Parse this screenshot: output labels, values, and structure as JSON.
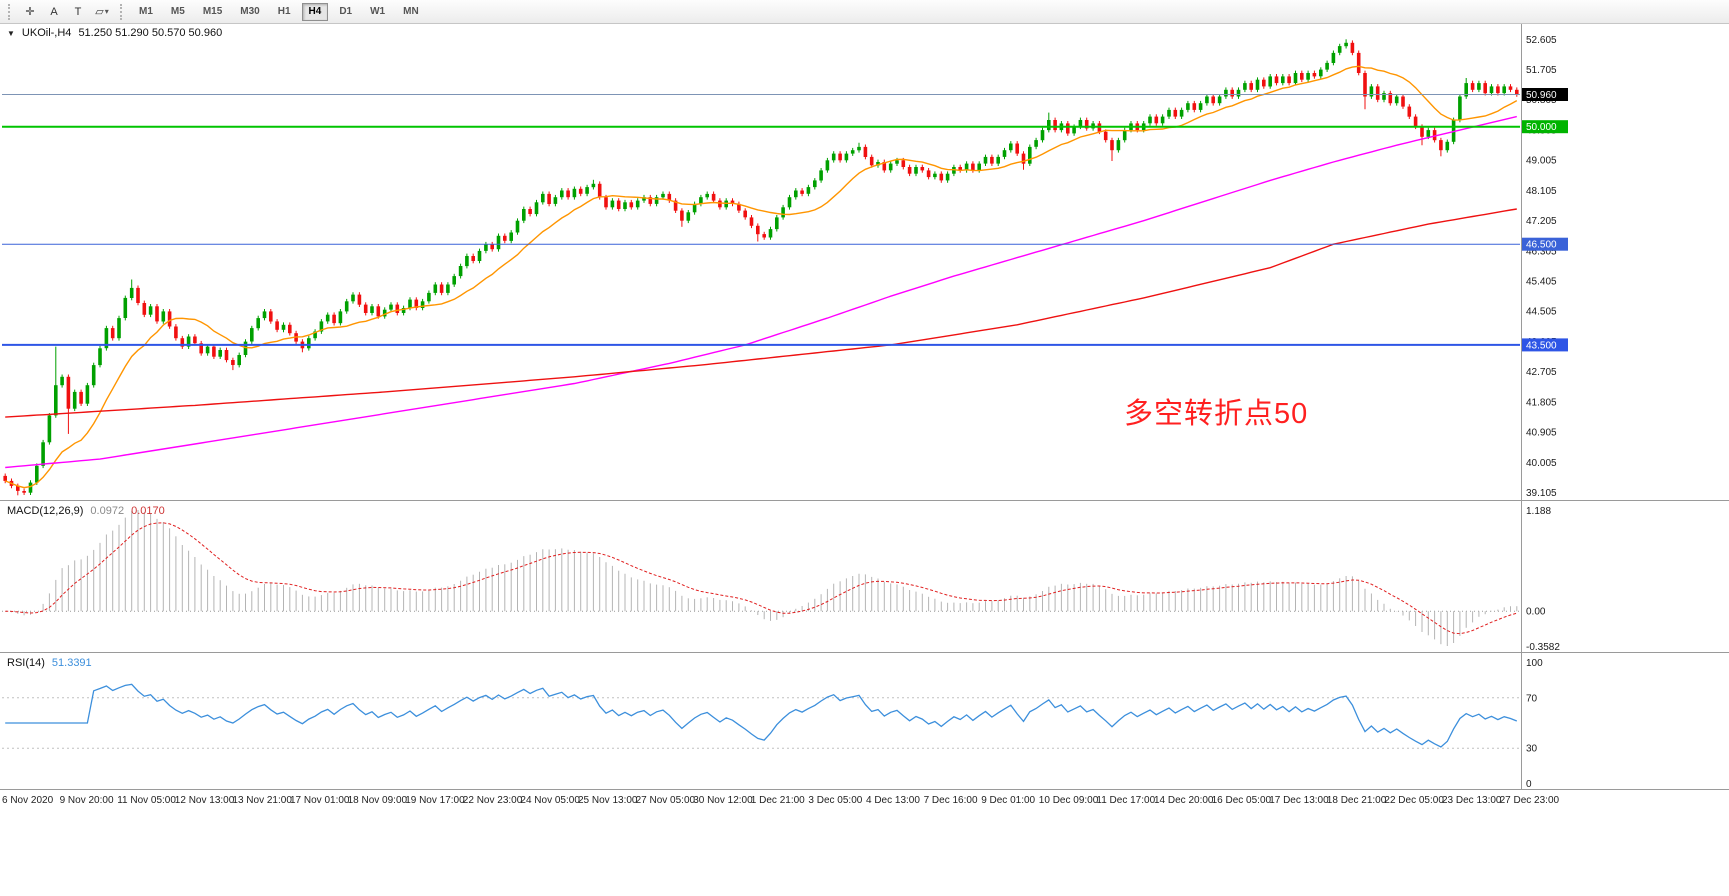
{
  "toolbar": {
    "tools": [
      {
        "name": "crosshair-tool",
        "glyph": "✛"
      },
      {
        "name": "text-tool",
        "glyph": "A"
      },
      {
        "name": "text-label-tool",
        "glyph": "T"
      },
      {
        "name": "shapes-tool",
        "glyph": "▱",
        "caret": "▾"
      }
    ],
    "timeframes": [
      "M1",
      "M5",
      "M15",
      "M30",
      "H1",
      "H4",
      "D1",
      "W1",
      "MN"
    ],
    "active_timeframe": "H4"
  },
  "chart": {
    "dropdown_icon": "▼",
    "title": "UKOil-,H4",
    "ohlc": "51.250 51.290 50.570 50.960",
    "annotation": "多空转折点50",
    "annotation_color": "#ff2020",
    "axis_labels": [
      "52.605",
      "51.705",
      "50.805",
      "49.905",
      "49.005",
      "48.105",
      "47.205",
      "46.305",
      "45.405",
      "44.505",
      "43.605",
      "42.705",
      "41.805",
      "40.905",
      "40.005",
      "39.105"
    ],
    "hlines": [
      {
        "price": 50.96,
        "label": "50.960",
        "line_color": "#7d94b5",
        "badge_color": "#000000",
        "width": 1
      },
      {
        "price": 50.0,
        "label": "50.000",
        "line_color": "#00c400",
        "badge_color": "#00b400",
        "width": 2
      },
      {
        "price": 46.5,
        "label": "46.500",
        "line_color": "#3a62d8",
        "badge_color": "#3a62d8",
        "width": 1
      },
      {
        "price": 43.5,
        "label": "43.500",
        "line_color": "#2e55e6",
        "badge_color": "#2e55e6",
        "width": 2
      }
    ]
  },
  "macd": {
    "title": "MACD(12,26,9)",
    "value1": "0.0972",
    "value2": "0.0170",
    "axis_max": "1.188",
    "axis_zero": "0.00",
    "axis_min": "-0.3582",
    "fast": 12,
    "slow": 26,
    "signal": 9,
    "histogram_color": "#b4b4b4",
    "signal_color": "#e02020"
  },
  "rsi": {
    "title": "RSI(14)",
    "value": "51.3391",
    "period": 14,
    "levels": [
      "100",
      "70",
      "30",
      "0"
    ],
    "line_color": "#3c8fdc"
  },
  "time_axis": {
    "labels": [
      "6 Nov 2020",
      "9 Nov 20:00",
      "11 Nov 05:00",
      "12 Nov 13:00",
      "13 Nov 21:00",
      "17 Nov 01:00",
      "18 Nov 09:00",
      "19 Nov 17:00",
      "22 Nov 23:00",
      "24 Nov 05:00",
      "25 Nov 13:00",
      "27 Nov 05:00",
      "30 Nov 12:00",
      "1 Dec 21:00",
      "3 Dec 05:00",
      "4 Dec 13:00",
      "7 Dec 16:00",
      "9 Dec 01:00",
      "10 Dec 09:00",
      "11 Dec 17:00",
      "14 Dec 20:00",
      "16 Dec 05:00",
      "17 Dec 13:00",
      "18 Dec 21:00",
      "22 Dec 05:00",
      "23 Dec 13:00",
      "27 Dec 23:00"
    ]
  },
  "chart_data": {
    "type": "candlestick",
    "symbol": "UKOil-",
    "timeframe": "H4",
    "title": "UKOil-,H4 51.250 51.290 50.570 50.960",
    "price_range": [
      39.0,
      53.0
    ],
    "first_open": 39.6,
    "default_wick": 0.07,
    "closes": [
      39.45,
      39.3,
      39.15,
      39.1,
      39.4,
      39.9,
      40.6,
      41.4,
      42.3,
      42.55,
      41.6,
      42.1,
      41.75,
      42.3,
      42.9,
      43.4,
      44.0,
      43.7,
      44.3,
      44.9,
      45.2,
      44.75,
      44.4,
      44.65,
      44.2,
      44.5,
      44.05,
      43.7,
      43.45,
      43.75,
      43.55,
      43.25,
      43.45,
      43.15,
      43.35,
      43.05,
      42.9,
      43.2,
      43.6,
      44.0,
      44.3,
      44.5,
      44.2,
      43.95,
      44.1,
      43.85,
      43.6,
      43.4,
      43.7,
      43.9,
      44.2,
      44.4,
      44.15,
      44.5,
      44.8,
      45.0,
      44.7,
      44.45,
      44.65,
      44.35,
      44.55,
      44.7,
      44.45,
      44.6,
      44.85,
      44.6,
      44.8,
      45.05,
      45.3,
      45.05,
      45.3,
      45.55,
      45.85,
      46.15,
      46.0,
      46.3,
      46.5,
      46.35,
      46.75,
      46.6,
      46.85,
      47.2,
      47.55,
      47.4,
      47.75,
      48.0,
      47.7,
      47.9,
      48.1,
      47.9,
      48.15,
      48.0,
      48.2,
      48.3,
      47.9,
      47.6,
      47.8,
      47.55,
      47.75,
      47.6,
      47.8,
      47.9,
      47.7,
      47.9,
      48.0,
      47.8,
      47.5,
      47.2,
      47.45,
      47.7,
      47.9,
      48.0,
      47.8,
      47.6,
      47.8,
      47.7,
      47.5,
      47.3,
      47.05,
      46.8,
      46.7,
      46.95,
      47.3,
      47.6,
      47.9,
      48.1,
      48.0,
      48.2,
      48.4,
      48.7,
      49.0,
      49.2,
      49.0,
      49.2,
      49.3,
      49.4,
      49.1,
      48.85,
      48.95,
      48.7,
      48.9,
      49.0,
      48.8,
      48.6,
      48.8,
      48.7,
      48.5,
      48.6,
      48.4,
      48.6,
      48.8,
      48.7,
      48.9,
      48.7,
      48.9,
      49.1,
      48.9,
      49.1,
      49.3,
      49.5,
      49.2,
      48.9,
      49.4,
      49.6,
      49.9,
      50.2,
      49.9,
      50.1,
      49.8,
      50.0,
      50.2,
      49.95,
      50.1,
      49.85,
      49.6,
      49.3,
      49.6,
      49.9,
      50.1,
      49.9,
      50.1,
      50.3,
      50.1,
      50.3,
      50.5,
      50.3,
      50.5,
      50.7,
      50.5,
      50.7,
      50.9,
      50.7,
      50.9,
      51.1,
      50.9,
      51.1,
      51.3,
      51.1,
      51.4,
      51.2,
      51.5,
      51.3,
      51.5,
      51.3,
      51.6,
      51.4,
      51.6,
      51.5,
      51.7,
      51.9,
      52.2,
      52.4,
      52.5,
      52.2,
      51.6,
      50.9,
      51.2,
      50.8,
      51.0,
      50.7,
      50.9,
      50.6,
      50.3,
      50.0,
      49.7,
      49.9,
      49.6,
      49.3,
      49.55,
      50.2,
      50.9,
      51.3,
      51.1,
      51.3,
      51.0,
      51.2,
      51.0,
      51.2,
      51.1,
      50.96
    ],
    "spikes_high": {
      "8": 43.45,
      "20": 45.45,
      "93": 48.42,
      "135": 49.52,
      "165": 50.42,
      "212": 52.605,
      "231": 51.45
    },
    "spikes_low": {
      "2": 39.02,
      "10": 40.85,
      "36": 42.75,
      "47": 43.28,
      "107": 47.02,
      "119": 46.58,
      "161": 48.72,
      "175": 48.98,
      "215": 50.52,
      "224": 49.45,
      "227": 49.12
    },
    "colors": {
      "bull": "#00a000",
      "bear": "#f01010"
    },
    "ma": {
      "orange": {
        "type": "sma",
        "period": 13,
        "color": "#ff9500"
      },
      "magenta": {
        "color": "#ff00ff",
        "anchors": [
          [
            0,
            39.85
          ],
          [
            15,
            40.1
          ],
          [
            30,
            40.55
          ],
          [
            45,
            41.0
          ],
          [
            60,
            41.45
          ],
          [
            75,
            41.9
          ],
          [
            90,
            42.35
          ],
          [
            105,
            42.95
          ],
          [
            117,
            43.5
          ],
          [
            130,
            44.3
          ],
          [
            140,
            44.95
          ],
          [
            150,
            45.55
          ],
          [
            160,
            46.1
          ],
          [
            170,
            46.65
          ],
          [
            180,
            47.2
          ],
          [
            190,
            47.8
          ],
          [
            200,
            48.4
          ],
          [
            210,
            48.95
          ],
          [
            220,
            49.45
          ],
          [
            230,
            49.9
          ],
          [
            239,
            50.3
          ]
        ]
      },
      "red": {
        "color": "#ee1111",
        "anchors": [
          [
            0,
            41.35
          ],
          [
            30,
            41.7
          ],
          [
            60,
            42.1
          ],
          [
            90,
            42.55
          ],
          [
            110,
            42.9
          ],
          [
            140,
            43.5
          ],
          [
            160,
            44.1
          ],
          [
            180,
            44.9
          ],
          [
            200,
            45.8
          ],
          [
            210,
            46.5
          ],
          [
            225,
            47.1
          ],
          [
            239,
            47.55
          ]
        ]
      }
    }
  }
}
